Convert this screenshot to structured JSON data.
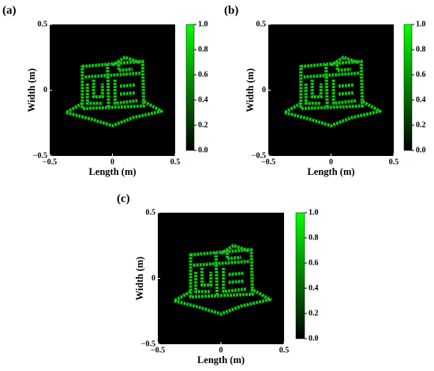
{
  "chart_data": [
    {
      "type": "image",
      "panel_label": "(a)",
      "xlabel": "Length (m)",
      "ylabel": "Width (m)",
      "xlim": [
        -0.5,
        0.5
      ],
      "ylim": [
        -0.5,
        0.5
      ],
      "xticks": [
        {
          "value": -0.5,
          "label": "−0.5"
        },
        0,
        0.5
      ],
      "yticks": [
        {
          "value": -0.5,
          "label": "−0.5"
        },
        0,
        0.5
      ],
      "clim": [
        0,
        1
      ],
      "cticks": [
        {
          "value": 0,
          "label": "0.0"
        },
        0.2,
        0.4,
        0.6,
        0.8,
        {
          "value": 1,
          "label": "1.0"
        }
      ],
      "colormap": [
        "#000000",
        "#00ff00"
      ]
    },
    {
      "type": "image",
      "panel_label": "(b)",
      "xlabel": "Length (m)",
      "ylabel": "Width (m)",
      "xlim": [
        -0.5,
        0.5
      ],
      "ylim": [
        -0.5,
        0.5
      ],
      "xticks": [
        {
          "value": -0.5,
          "label": "−0.5"
        },
        0,
        0.5
      ],
      "yticks": [
        {
          "value": -0.5,
          "label": "−0.5"
        },
        0,
        0.5
      ],
      "clim": [
        0,
        1
      ],
      "cticks": [
        {
          "value": 0,
          "label": "0.0"
        },
        0.2,
        0.4,
        0.6,
        0.8,
        {
          "value": 1,
          "label": "1.0"
        }
      ],
      "colormap": [
        "#000000",
        "#00ff00"
      ]
    },
    {
      "type": "image",
      "panel_label": "(c)",
      "xlabel": "Length (m)",
      "ylabel": "Width (m)",
      "xlim": [
        -0.5,
        0.5
      ],
      "ylim": [
        -0.5,
        0.5
      ],
      "xticks": [
        {
          "value": -0.5,
          "label": "−0.5"
        },
        0,
        0.5
      ],
      "yticks": [
        {
          "value": -0.5,
          "label": "−0.5"
        },
        0,
        0.5
      ],
      "clim": [
        0,
        1
      ],
      "cticks": [
        {
          "value": 0,
          "label": "0.0"
        },
        0.2,
        0.4,
        0.6,
        0.8,
        {
          "value": 1,
          "label": "1.0"
        }
      ],
      "colormap": [
        "#000000",
        "#00ff00"
      ]
    }
  ]
}
